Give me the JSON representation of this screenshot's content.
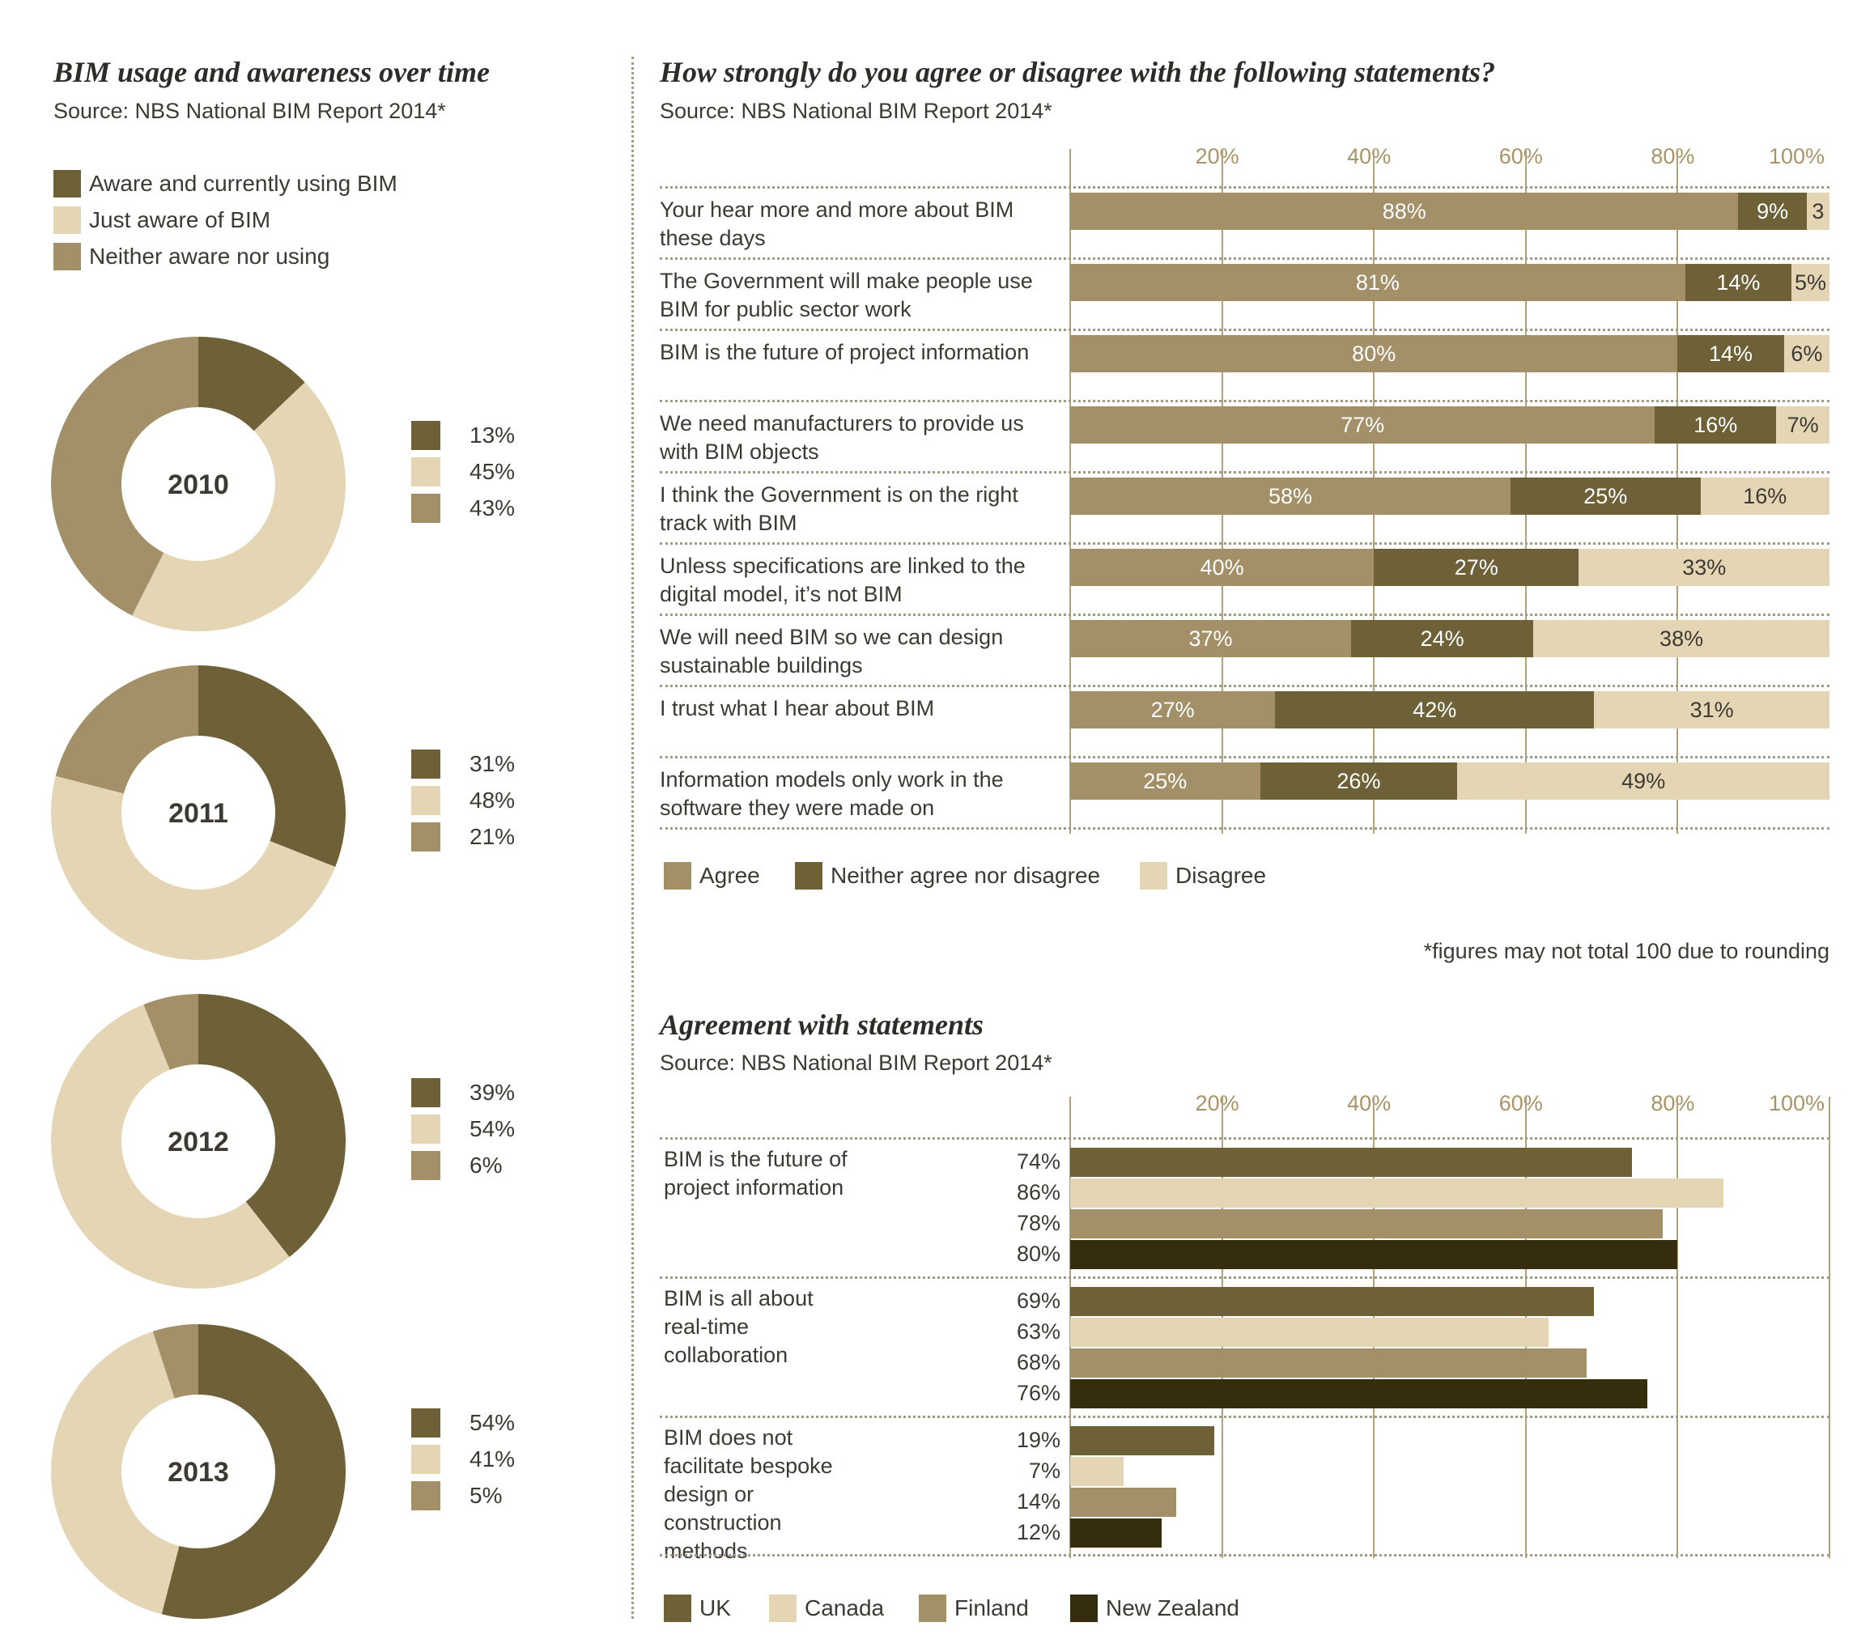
{
  "left": {
    "title": "BIM usage and awareness over time",
    "source": "Source: NBS National BIM Report 2014*",
    "legend": [
      "Aware and currently using BIM",
      "Just aware of BIM",
      "Neither aware nor using"
    ]
  },
  "right_top": {
    "title": "How strongly do you agree or disagree with the following statements?",
    "source": "Source: NBS National BIM Report 2014*",
    "ticks": [
      "20%",
      "40%",
      "60%",
      "80%",
      "100%"
    ],
    "legend": [
      "Agree",
      "Neither agree nor disagree",
      "Disagree"
    ],
    "note": "*figures may not total 100 due to rounding",
    "rows": [
      {
        "label": "Your hear more and more about BIM these days",
        "labels": [
          "88%",
          "9%",
          "3"
        ]
      },
      {
        "label": "The Government will make people use BIM for public sector work",
        "labels": [
          "81%",
          "14%",
          "5%"
        ]
      },
      {
        "label": "BIM is the future of project information",
        "labels": [
          "80%",
          "14%",
          "6%"
        ]
      },
      {
        "label": "We need manufacturers to provide us with BIM objects",
        "labels": [
          "77%",
          "16%",
          "7%"
        ]
      },
      {
        "label": "I think the Government is on the right track with BIM",
        "labels": [
          "58%",
          "25%",
          "16%"
        ]
      },
      {
        "label": "Unless specifications are linked to the digital model, it’s not BIM",
        "labels": [
          "40%",
          "27%",
          "33%"
        ]
      },
      {
        "label": "We will need BIM so we can design sustainable buildings",
        "labels": [
          "37%",
          "24%",
          "38%"
        ]
      },
      {
        "label": "I trust what I hear about BIM",
        "labels": [
          "27%",
          "42%",
          "31%"
        ]
      },
      {
        "label": "Information models only work in the software they were made on",
        "labels": [
          "25%",
          "26%",
          "49%"
        ]
      }
    ]
  },
  "right_bottom": {
    "title": "Agreement with statements",
    "source": "Source: NBS National BIM Report 2014*",
    "ticks": [
      "20%",
      "40%",
      "60%",
      "80%",
      "100%"
    ],
    "legend": [
      "UK",
      "Canada",
      "Finland",
      "New Zealand"
    ],
    "groups": [
      {
        "label": "BIM is the future of project information",
        "labels": [
          "74%",
          "86%",
          "78%",
          "80%"
        ]
      },
      {
        "label": "BIM is all about real-time collaboration",
        "labels": [
          "69%",
          "63%",
          "68%",
          "76%"
        ]
      },
      {
        "label": "BIM does not facilitate bespoke design or construction methods",
        "labels": [
          "19%",
          "7%",
          "14%",
          "12%"
        ]
      }
    ]
  },
  "chart_data": [
    {
      "type": "pie",
      "title": "BIM usage and awareness over time",
      "categories": [
        "Aware and currently using BIM",
        "Just aware of BIM",
        "Neither aware nor using"
      ],
      "colors": [
        "#6e6138",
        "#e4d5b4",
        "#a39068"
      ],
      "series": [
        {
          "name": "2010",
          "values": [
            13,
            45,
            43
          ],
          "labels": [
            "13%",
            "45%",
            "43%"
          ]
        },
        {
          "name": "2011",
          "values": [
            31,
            48,
            21
          ],
          "labels": [
            "31%",
            "48%",
            "21%"
          ]
        },
        {
          "name": "2012",
          "values": [
            39,
            54,
            6
          ],
          "labels": [
            "39%",
            "54%",
            "6%"
          ]
        },
        {
          "name": "2013",
          "values": [
            54,
            41,
            5
          ],
          "labels": [
            "54%",
            "41%",
            "5%"
          ]
        }
      ]
    },
    {
      "type": "bar",
      "orientation": "horizontal",
      "stacked": true,
      "title": "How strongly do you agree or disagree with the following statements?",
      "categories": [
        "Your hear more and more about BIM these days",
        "The Government will make people use BIM for public sector work",
        "BIM is the future of project information",
        "We need manufacturers to provide us with BIM objects",
        "I think the Government is on the right track with BIM",
        "Unless specifications are linked to the digital model, it’s not BIM",
        "We will need BIM so we can design sustainable buildings",
        "I trust what I hear about BIM",
        "Information models only work in the software they were made on"
      ],
      "series": [
        {
          "name": "Agree",
          "color": "#a39068",
          "values": [
            88,
            81,
            80,
            77,
            58,
            40,
            37,
            27,
            25
          ]
        },
        {
          "name": "Neither agree nor disagree",
          "color": "#6e6138",
          "values": [
            9,
            14,
            14,
            16,
            25,
            27,
            24,
            42,
            26
          ]
        },
        {
          "name": "Disagree",
          "color": "#e4d5b4",
          "values": [
            3,
            5,
            6,
            7,
            16,
            33,
            38,
            31,
            49
          ]
        }
      ],
      "xlim": [
        0,
        100
      ],
      "legend": "bottom"
    },
    {
      "type": "bar",
      "orientation": "horizontal",
      "title": "Agreement with statements",
      "categories": [
        "BIM is the future of project information",
        "BIM is all about real-time collaboration",
        "BIM does not facilitate bespoke design or construction methods"
      ],
      "series": [
        {
          "name": "UK",
          "color": "#6e6138",
          "values": [
            74,
            69,
            19
          ]
        },
        {
          "name": "Canada",
          "color": "#e4d5b4",
          "values": [
            86,
            63,
            7
          ]
        },
        {
          "name": "Finland",
          "color": "#a39068",
          "values": [
            78,
            68,
            14
          ]
        },
        {
          "name": "New Zealand",
          "color": "#362c0e",
          "values": [
            80,
            76,
            12
          ]
        }
      ],
      "xlim": [
        0,
        100
      ],
      "legend": "bottom"
    }
  ]
}
